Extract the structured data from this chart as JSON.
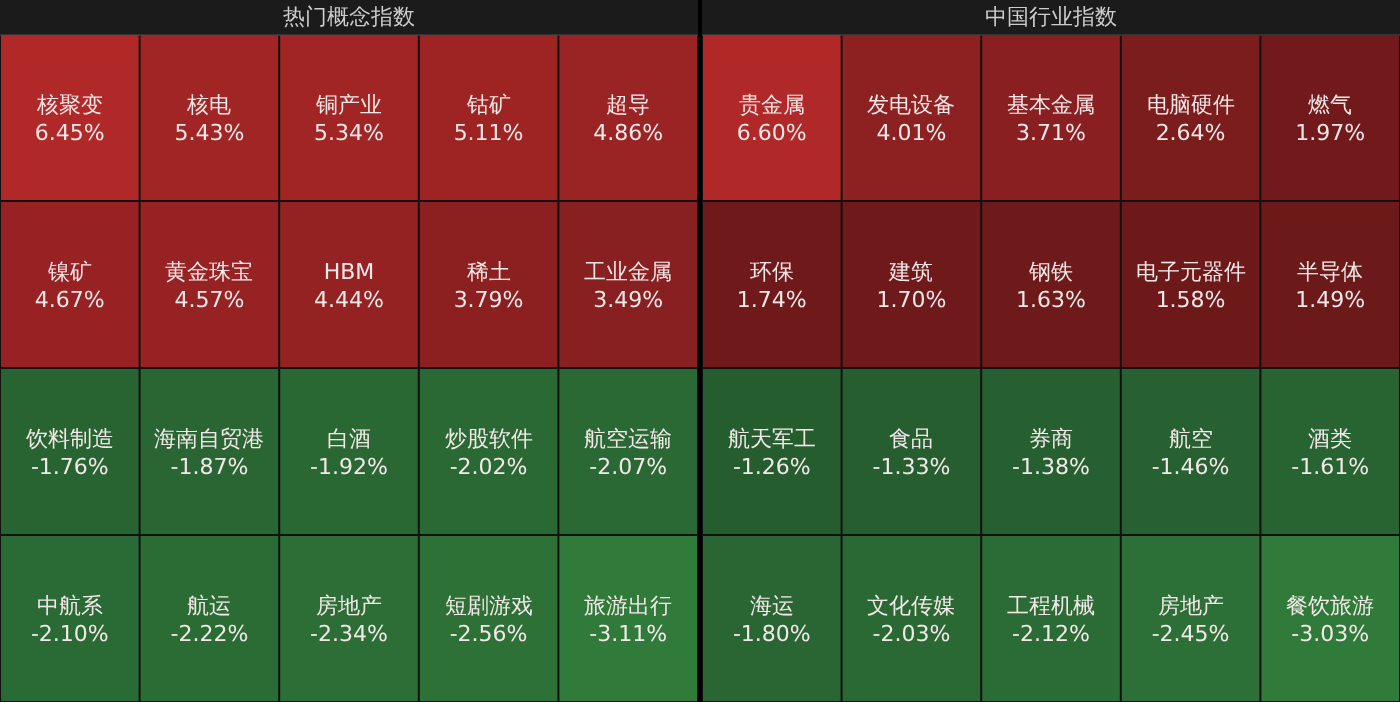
{
  "chart_data": [
    {
      "type": "other",
      "title": "热门概念指数",
      "categories": [
        "核聚变",
        "核电",
        "铜产业",
        "钴矿",
        "超导",
        "镍矿",
        "黄金珠宝",
        "HBM",
        "稀土",
        "工业金属",
        "饮料制造",
        "海南自贸港",
        "白酒",
        "炒股软件",
        "航空运输",
        "中航系",
        "航运",
        "房地产",
        "短剧游戏",
        "旅游出行"
      ],
      "values": [
        6.45,
        5.43,
        5.34,
        5.11,
        4.86,
        4.67,
        4.57,
        4.44,
        3.79,
        3.49,
        -1.76,
        -1.87,
        -1.92,
        -2.02,
        -2.07,
        -2.1,
        -2.22,
        -2.34,
        -2.56,
        -3.11
      ],
      "value_labels": [
        "6.45%",
        "5.43%",
        "5.34%",
        "5.11%",
        "4.86%",
        "4.67%",
        "4.57%",
        "4.44%",
        "3.79%",
        "3.49%",
        "-1.76%",
        "-1.87%",
        "-1.92%",
        "-2.02%",
        "-2.07%",
        "-2.10%",
        "-2.22%",
        "-2.34%",
        "-2.56%",
        "-3.11%"
      ]
    },
    {
      "type": "other",
      "title": "中国行业指数",
      "categories": [
        "贵金属",
        "发电设备",
        "基本金属",
        "电脑硬件",
        "燃气",
        "环保",
        "建筑",
        "钢铁",
        "电子元器件",
        "半导体",
        "航天军工",
        "食品",
        "券商",
        "航空",
        "酒类",
        "海运",
        "文化传媒",
        "工程机械",
        "房地产",
        "餐饮旅游"
      ],
      "values": [
        6.6,
        4.01,
        3.71,
        2.64,
        1.97,
        1.74,
        1.7,
        1.63,
        1.58,
        1.49,
        -1.26,
        -1.33,
        -1.38,
        -1.46,
        -1.61,
        -1.8,
        -2.03,
        -2.12,
        -2.45,
        -3.03
      ],
      "value_labels": [
        "6.60%",
        "4.01%",
        "3.71%",
        "2.64%",
        "1.97%",
        "1.74%",
        "1.70%",
        "1.63%",
        "1.58%",
        "1.49%",
        "-1.26%",
        "-1.33%",
        "-1.38%",
        "-1.46%",
        "-1.61%",
        "-1.80%",
        "-2.03%",
        "-2.12%",
        "-2.45%",
        "-3.03%"
      ]
    }
  ]
}
